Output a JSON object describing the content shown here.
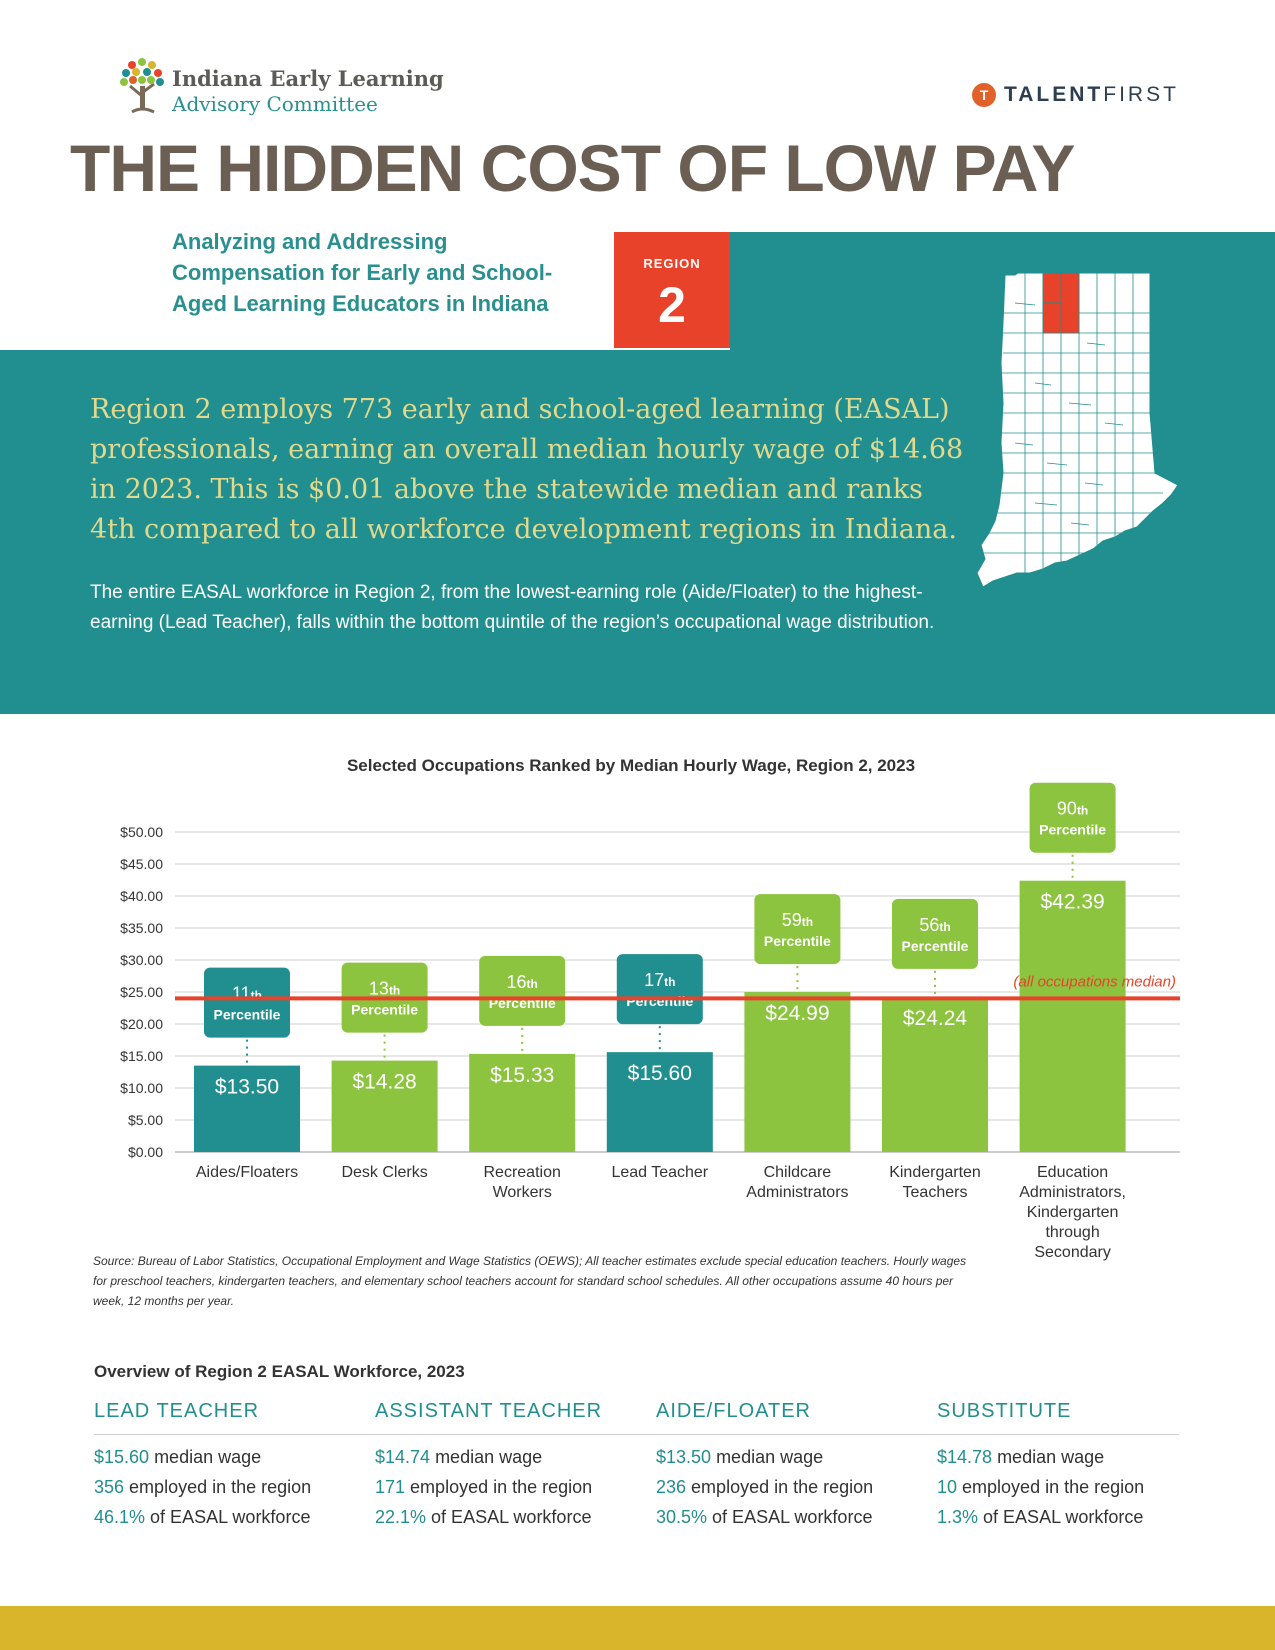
{
  "header": {
    "org_line1": "Indiana Early Learning",
    "org_line2": "Advisory Committee",
    "partner_badge": "T",
    "partner_bold": "TALENT",
    "partner_light": "FIRST",
    "title": "THE HIDDEN COST OF LOW PAY",
    "subtitle": "Analyzing and Addressing Compensation for Early and School-Aged Learning Educators in Indiana",
    "region_label": "REGION",
    "region_number": "2"
  },
  "intro": {
    "lead": "Region 2 employs 773 early and school-aged learning (EASAL) professionals, earning an overall median hourly wage of $14.68 in 2023. This is $0.01 above the statewide median and ranks 4th compared to all workforce development regions in Indiana.",
    "body": "The entire EASAL workforce in Region 2, from the lowest-earning role (Aide/Floater) to the highest-earning (Lead Teacher), falls within the bottom quintile of the region’s occupational wage distribution."
  },
  "colors": {
    "teal": "#218e8f",
    "green": "#8cc43f",
    "red": "#e8432a",
    "gold": "#d8b52b",
    "lead_text": "#e2d98c"
  },
  "chart_title": "Selected Occupations Ranked by Median Hourly Wage, Region 2, 2023",
  "chart_data": {
    "type": "bar",
    "title": "Selected Occupations Ranked by Median Hourly Wage, Region 2, 2023",
    "categories": [
      "Aides/Floaters",
      "Desk Clerks",
      "Recreation Workers",
      "Lead Teacher",
      "Childcare Administrators",
      "Kindergarten Teachers",
      "Education Administrators, Kindergarten through Secondary"
    ],
    "category_lines": [
      [
        "Aides/Floaters"
      ],
      [
        "Desk Clerks"
      ],
      [
        "Recreation",
        "Workers"
      ],
      [
        "Lead Teacher"
      ],
      [
        "Childcare",
        "Administrators"
      ],
      [
        "Kindergarten",
        "Teachers"
      ],
      [
        "Education",
        "Administrators,",
        "Kindergarten",
        "through",
        "Secondary"
      ]
    ],
    "values": [
      13.5,
      14.28,
      15.33,
      15.6,
      24.99,
      24.24,
      42.39
    ],
    "value_labels": [
      "$13.50",
      "$14.28",
      "$15.33",
      "$15.60",
      "$24.99",
      "$24.24",
      "$42.39"
    ],
    "percentiles": [
      "11",
      "13",
      "16",
      "17",
      "59",
      "56",
      "90"
    ],
    "percentile_suffix": "th",
    "percentile_word": "Percentile",
    "bar_colors": [
      "#218e8f",
      "#8cc43f",
      "#8cc43f",
      "#218e8f",
      "#8cc43f",
      "#8cc43f",
      "#8cc43f"
    ],
    "ylim": [
      0,
      50
    ],
    "yticks": [
      0,
      5,
      10,
      15,
      20,
      25,
      30,
      35,
      40,
      45,
      50
    ],
    "ytick_labels": [
      "$0.00",
      "$5.00",
      "$10.00",
      "$15.00",
      "$20.00",
      "$25.00",
      "$30.00",
      "$35.00",
      "$40.00",
      "$45.00",
      "$50.00"
    ],
    "reference_line": {
      "value": 24,
      "label": "(all occupations median)",
      "color": "#e8432a"
    },
    "grid": true,
    "legend": "none"
  },
  "source_note": "Source: Bureau of Labor Statistics, Occupational Employment and Wage Statistics (OEWS); All teacher estimates exclude special education teachers. Hourly wages for preschool teachers, kindergarten teachers, and elementary school teachers account for standard school schedules. All other occupations assume 40 hours per week, 12 months per year.",
  "overview": {
    "title": "Overview of Region 2 EASAL Workforce, 2023",
    "wage_suffix": " median wage",
    "employed_suffix": " employed in the region",
    "share_suffix": " of EASAL workforce",
    "roles": [
      {
        "name": "LEAD TEACHER",
        "wage": "$15.60",
        "employed": "356",
        "share": "46.1%"
      },
      {
        "name": "ASSISTANT TEACHER",
        "wage": "$14.74",
        "employed": "171",
        "share": "22.1%"
      },
      {
        "name": "AIDE/FLOATER",
        "wage": "$13.50",
        "employed": "236",
        "share": "30.5%"
      },
      {
        "name": "SUBSTITUTE",
        "wage": "$14.78",
        "employed": "10",
        "share": "1.3%"
      }
    ]
  }
}
